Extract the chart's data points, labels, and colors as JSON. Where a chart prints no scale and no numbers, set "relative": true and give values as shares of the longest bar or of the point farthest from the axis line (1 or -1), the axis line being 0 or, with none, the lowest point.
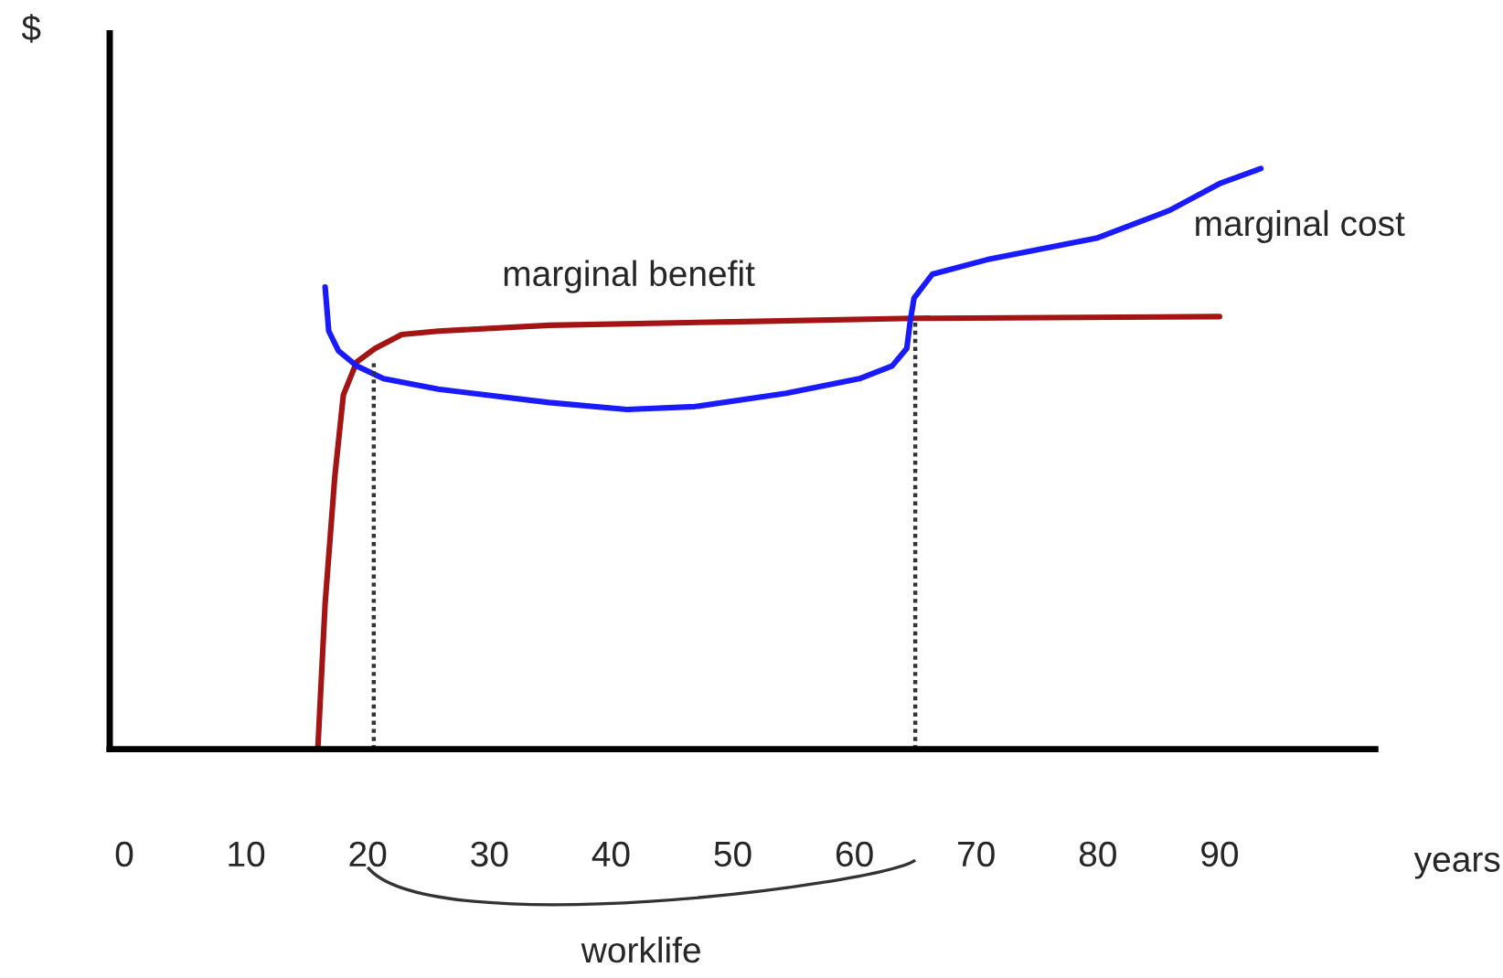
{
  "chart_data": {
    "type": "line",
    "relative": true,
    "xlabel": "years",
    "ylabel": "$",
    "xlim": [
      -1.2,
      102.8
    ],
    "xticks": [
      0,
      10,
      20,
      30,
      40,
      50,
      60,
      70,
      80,
      90
    ],
    "grid": false,
    "legend": false,
    "marker": "none",
    "series": [
      {
        "color": "#a31515",
        "x": [
          15.9,
          16.5,
          17.3,
          18.0,
          19.1,
          20.6,
          22.8,
          25.8,
          34.9,
          49.9,
          64.9,
          90
        ],
        "values": [
          0,
          0.25,
          0.47,
          0.61,
          0.667,
          0.69,
          0.714,
          0.72,
          0.73,
          0.736,
          0.742,
          0.745
        ]
      },
      {
        "color": "#1a1aff",
        "x": [
          16.5,
          16.8,
          17.6,
          19.1,
          21.3,
          25.8,
          34.9,
          41.3,
          46.9,
          54.4,
          60.4,
          63.1,
          64.3,
          64.6,
          64.9,
          66.4,
          70.9,
          79.9,
          85.9,
          90.1,
          93.4
        ],
        "values": [
          0.796,
          0.72,
          0.686,
          0.66,
          0.638,
          0.62,
          0.597,
          0.585,
          0.59,
          0.613,
          0.638,
          0.66,
          0.69,
          0.739,
          0.777,
          0.818,
          0.843,
          0.88,
          0.928,
          0.975,
          1.0
        ]
      },
      {
        "color": "#333333",
        "line_style": "dotted",
        "x": [
          20.5,
          20.5
        ],
        "values": [
          0,
          0.667
        ]
      },
      {
        "color": "#333333",
        "line_style": "dotted",
        "x": [
          65,
          65
        ],
        "values": [
          0,
          0.742
        ]
      }
    ],
    "annotations": [
      "marginal benefit",
      "marginal cost",
      "worklife"
    ]
  }
}
